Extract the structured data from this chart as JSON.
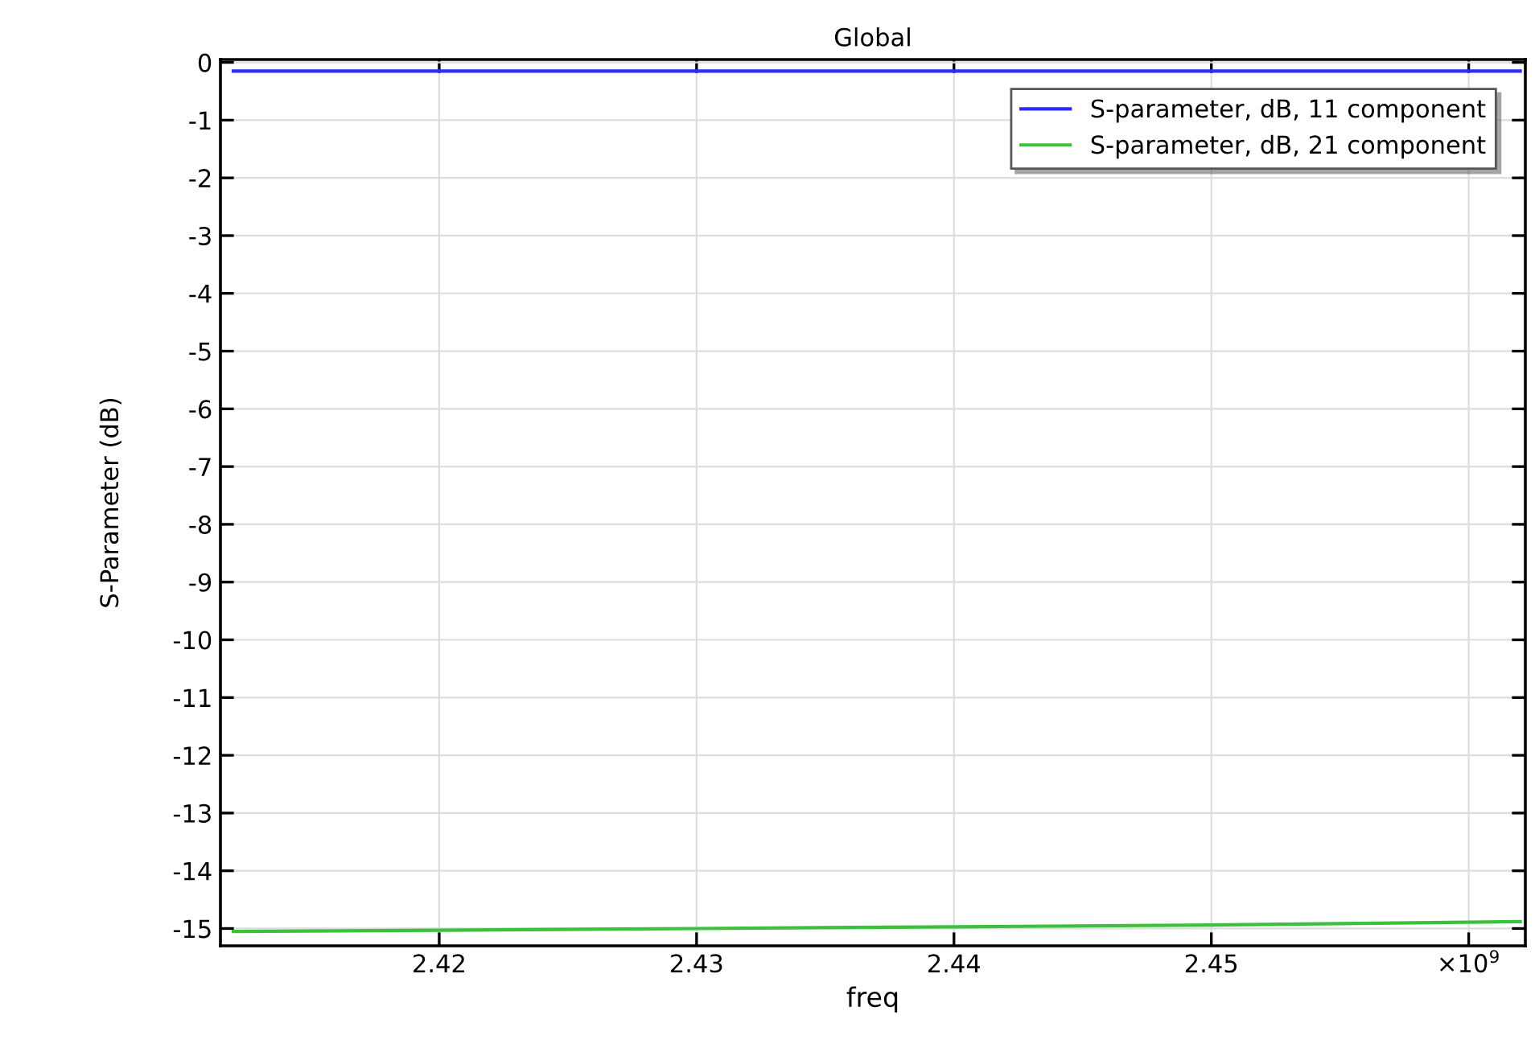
{
  "chart_data": {
    "type": "line",
    "title": "Global",
    "xlabel": "freq",
    "ylabel": "S-Parameter (dB)",
    "x": [
      2.412,
      2.42,
      2.43,
      2.44,
      2.45,
      2.462
    ],
    "series": [
      {
        "name": "S-parameter, dB, 11 component",
        "color": "#2b2bff",
        "values": [
          -0.15,
          -0.15,
          -0.15,
          -0.15,
          -0.15,
          -0.15
        ]
      },
      {
        "name": "S-parameter, dB, 21 component",
        "color": "#3cc13c",
        "values": [
          -15.05,
          -15.03,
          -15.0,
          -14.97,
          -14.94,
          -14.88
        ]
      }
    ],
    "xlim": [
      2.4115,
      2.4622
    ],
    "xticks": [
      2.42,
      2.43,
      2.44,
      2.45,
      {
        "value": 2.46,
        "label": "×10$^{9}$"
      }
    ],
    "ylim": [
      -15.3,
      0.05
    ],
    "yticks": [
      0,
      -1,
      -2,
      -3,
      -4,
      -5,
      -6,
      -7,
      -8,
      -9,
      -10,
      -11,
      -12,
      -13,
      -14,
      -15
    ],
    "grid": true,
    "legend": "top right",
    "marker": "none",
    "line_style": "solid"
  }
}
